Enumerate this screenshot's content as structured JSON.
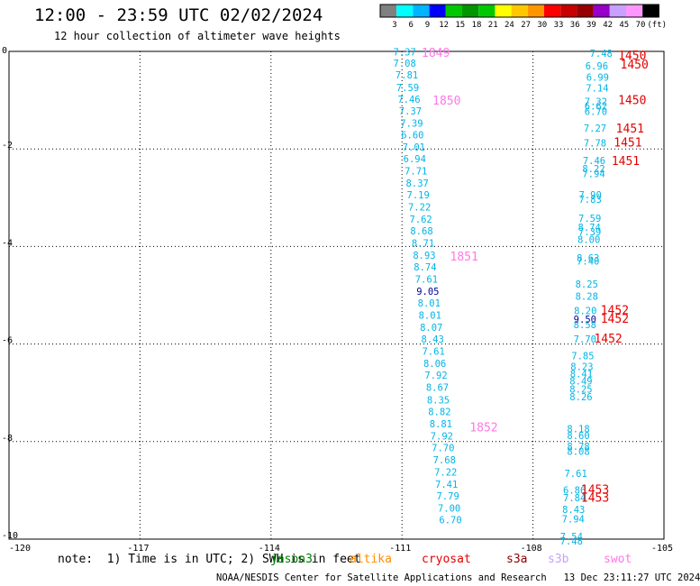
{
  "header": {
    "title": "12:00 - 23:59 UTC 02/02/2024",
    "subtitle": "12 hour collection of altimeter wave heights"
  },
  "colors": {
    "cyan": "#00b4e6",
    "navy": "#000090",
    "red": "#e60000",
    "pink": "#ff78e6",
    "grid": "#000000"
  },
  "color_scale": {
    "labels": [
      "3",
      "6",
      "9",
      "12",
      "15",
      "18",
      "21",
      "24",
      "27",
      "30",
      "33",
      "36",
      "39",
      "42",
      "45",
      "70",
      "(ft)"
    ],
    "swatches": [
      "#808080",
      "#00ffff",
      "#00b4ff",
      "#0000ff",
      "#00c800",
      "#009600",
      "#00c800",
      "#ffff00",
      "#ffc800",
      "#ff9600",
      "#ff0000",
      "#c80000",
      "#960000",
      "#9600c8",
      "#c8a0ff",
      "#ff96ff",
      "#000000"
    ]
  },
  "footer": {
    "note": "note:  1) Time is in UTC; 2) SWH is in feet",
    "missions": [
      {
        "name": "jason3",
        "color": "#008000"
      },
      {
        "name": "altika",
        "color": "#ff8c00"
      },
      {
        "name": "cryosat",
        "color": "#e60000"
      },
      {
        "name": "s3a",
        "color": "#8b0000"
      },
      {
        "name": "s3b",
        "color": "#c8a0ff"
      },
      {
        "name": "swot",
        "color": "#ff78e6"
      }
    ],
    "credit": "NOAA/NESDIS Center for Satellite Applications and Research   13 Dec 23:11:27 UTC 2024"
  },
  "chart_data": {
    "type": "scatter",
    "title": "12:00 - 23:59 UTC 02/02/2024",
    "subtitle": "12 hour collection of altimeter wave heights",
    "xlabel": "",
    "ylabel": "",
    "xlim": [
      -120,
      -105
    ],
    "ylim": [
      -10,
      0
    ],
    "grid": true,
    "x_ticks": [
      "-120",
      "-117",
      "-114",
      "-111",
      "-108",
      "-105"
    ],
    "y_ticks": [
      "0",
      "-2",
      "-4",
      "-6",
      "-8",
      "-10"
    ],
    "x_tick_values": [
      -120,
      -117,
      -114,
      -111,
      -108,
      -105
    ],
    "y_tick_values": [
      0,
      -2,
      -4,
      -6,
      -8,
      -10
    ],
    "track_west": [
      {
        "lon": -111.2,
        "lat": -0.01,
        "v": "7.37",
        "c": "cyan"
      },
      {
        "lon": -111.2,
        "lat": -0.24,
        "v": "7.08",
        "c": "cyan"
      },
      {
        "lon": -111.15,
        "lat": -0.48,
        "v": "7.81",
        "c": "cyan"
      },
      {
        "lon": -111.13,
        "lat": -0.74,
        "v": "7.59",
        "c": "cyan"
      },
      {
        "lon": -111.1,
        "lat": -0.98,
        "v": "7.46",
        "c": "cyan"
      },
      {
        "lon": -111.07,
        "lat": -1.22,
        "v": "7.37",
        "c": "cyan"
      },
      {
        "lon": -111.04,
        "lat": -1.47,
        "v": "7.39",
        "c": "cyan"
      },
      {
        "lon": -111.02,
        "lat": -1.71,
        "v": "6.60",
        "c": "cyan"
      },
      {
        "lon": -110.99,
        "lat": -1.96,
        "v": "7.01",
        "c": "cyan"
      },
      {
        "lon": -110.97,
        "lat": -2.2,
        "v": "6.94",
        "c": "cyan"
      },
      {
        "lon": -110.94,
        "lat": -2.45,
        "v": "7.71",
        "c": "cyan"
      },
      {
        "lon": -110.91,
        "lat": -2.7,
        "v": "8.37",
        "c": "cyan"
      },
      {
        "lon": -110.89,
        "lat": -2.94,
        "v": "7.19",
        "c": "cyan"
      },
      {
        "lon": -110.86,
        "lat": -3.19,
        "v": "7.22",
        "c": "cyan"
      },
      {
        "lon": -110.83,
        "lat": -3.44,
        "v": "7.62",
        "c": "cyan"
      },
      {
        "lon": -110.81,
        "lat": -3.68,
        "v": "8.68",
        "c": "cyan"
      },
      {
        "lon": -110.78,
        "lat": -3.93,
        "v": "8.71",
        "c": "cyan"
      },
      {
        "lon": -110.75,
        "lat": -4.18,
        "v": "8.93",
        "c": "cyan"
      },
      {
        "lon": -110.73,
        "lat": -4.42,
        "v": "8.74",
        "c": "cyan"
      },
      {
        "lon": -110.7,
        "lat": -4.67,
        "v": "7.61",
        "c": "cyan"
      },
      {
        "lon": -110.67,
        "lat": -4.92,
        "v": "9.05",
        "c": "navy"
      },
      {
        "lon": -110.64,
        "lat": -5.16,
        "v": "8.01",
        "c": "cyan"
      },
      {
        "lon": -110.62,
        "lat": -5.41,
        "v": "8.01",
        "c": "cyan"
      },
      {
        "lon": -110.59,
        "lat": -5.66,
        "v": "8.07",
        "c": "cyan"
      },
      {
        "lon": -110.56,
        "lat": -5.9,
        "v": "8.43",
        "c": "cyan"
      },
      {
        "lon": -110.54,
        "lat": -6.15,
        "v": "7.61",
        "c": "cyan"
      },
      {
        "lon": -110.51,
        "lat": -6.4,
        "v": "8.06",
        "c": "cyan"
      },
      {
        "lon": -110.48,
        "lat": -6.64,
        "v": "7.92",
        "c": "cyan"
      },
      {
        "lon": -110.45,
        "lat": -6.89,
        "v": "8.67",
        "c": "cyan"
      },
      {
        "lon": -110.43,
        "lat": -7.14,
        "v": "8.35",
        "c": "cyan"
      },
      {
        "lon": -110.4,
        "lat": -7.38,
        "v": "8.82",
        "c": "cyan"
      },
      {
        "lon": -110.37,
        "lat": -7.63,
        "v": "8.81",
        "c": "cyan"
      },
      {
        "lon": -110.35,
        "lat": -7.88,
        "v": "7.92",
        "c": "cyan"
      },
      {
        "lon": -110.32,
        "lat": -8.12,
        "v": "7.70",
        "c": "cyan"
      },
      {
        "lon": -110.29,
        "lat": -8.37,
        "v": "7.68",
        "c": "cyan"
      },
      {
        "lon": -110.26,
        "lat": -8.62,
        "v": "7.22",
        "c": "cyan"
      },
      {
        "lon": -110.24,
        "lat": -8.87,
        "v": "7.41",
        "c": "cyan"
      },
      {
        "lon": -110.21,
        "lat": -9.11,
        "v": "7.79",
        "c": "cyan"
      },
      {
        "lon": -110.18,
        "lat": -9.36,
        "v": "7.00",
        "c": "cyan"
      },
      {
        "lon": -110.15,
        "lat": -9.6,
        "v": "6.70",
        "c": "cyan"
      }
    ],
    "track_east": [
      {
        "lon": -106.7,
        "lat": -0.04,
        "v": "7.48",
        "c": "cyan"
      },
      {
        "lon": -106.8,
        "lat": -0.3,
        "v": "6.96",
        "c": "cyan"
      },
      {
        "lon": -106.78,
        "lat": -0.53,
        "v": "6.99",
        "c": "cyan"
      },
      {
        "lon": -106.79,
        "lat": -0.75,
        "v": "7.14",
        "c": "cyan"
      },
      {
        "lon": -106.82,
        "lat": -1.03,
        "v": "7.32",
        "c": "cyan"
      },
      {
        "lon": -106.82,
        "lat": -1.12,
        "v": "6.62",
        "c": "cyan"
      },
      {
        "lon": -106.82,
        "lat": -1.23,
        "v": "6.70",
        "c": "cyan"
      },
      {
        "lon": -106.84,
        "lat": -1.57,
        "v": "7.27",
        "c": "cyan"
      },
      {
        "lon": -106.84,
        "lat": -1.88,
        "v": "7.78",
        "c": "cyan"
      },
      {
        "lon": -106.86,
        "lat": -2.24,
        "v": "7.46",
        "c": "cyan"
      },
      {
        "lon": -106.87,
        "lat": -2.4,
        "v": "8.22",
        "c": "cyan"
      },
      {
        "lon": -106.87,
        "lat": -2.5,
        "v": "7.94",
        "c": "cyan"
      },
      {
        "lon": -106.95,
        "lat": -2.94,
        "v": "7.90",
        "c": "cyan"
      },
      {
        "lon": -106.95,
        "lat": -3.03,
        "v": "7.83",
        "c": "cyan"
      },
      {
        "lon": -106.96,
        "lat": -3.42,
        "v": "7.59",
        "c": "cyan"
      },
      {
        "lon": -106.97,
        "lat": -3.6,
        "v": "8.74",
        "c": "cyan"
      },
      {
        "lon": -106.96,
        "lat": -3.7,
        "v": "7.39",
        "c": "cyan"
      },
      {
        "lon": -106.98,
        "lat": -3.85,
        "v": "8.00",
        "c": "cyan"
      },
      {
        "lon": -107.0,
        "lat": -4.23,
        "v": "8.63",
        "c": "cyan"
      },
      {
        "lon": -107.0,
        "lat": -4.3,
        "v": "7.40",
        "c": "cyan"
      },
      {
        "lon": -107.03,
        "lat": -4.77,
        "v": "8.25",
        "c": "cyan"
      },
      {
        "lon": -107.03,
        "lat": -5.02,
        "v": "8.28",
        "c": "cyan"
      },
      {
        "lon": -107.06,
        "lat": -5.31,
        "v": "8.20",
        "c": "cyan"
      },
      {
        "lon": -107.07,
        "lat": -5.49,
        "v": "9.50",
        "c": "navy"
      },
      {
        "lon": -107.07,
        "lat": -5.6,
        "v": "8.58",
        "c": "cyan"
      },
      {
        "lon": -107.07,
        "lat": -5.9,
        "v": "7.70",
        "c": "cyan"
      },
      {
        "lon": -107.12,
        "lat": -6.24,
        "v": "7.85",
        "c": "cyan"
      },
      {
        "lon": -107.14,
        "lat": -6.46,
        "v": "8.23",
        "c": "cyan"
      },
      {
        "lon": -107.15,
        "lat": -6.61,
        "v": "8.41",
        "c": "cyan"
      },
      {
        "lon": -107.16,
        "lat": -6.76,
        "v": "8.49",
        "c": "cyan"
      },
      {
        "lon": -107.16,
        "lat": -6.92,
        "v": "8.25",
        "c": "cyan"
      },
      {
        "lon": -107.16,
        "lat": -7.08,
        "v": "8.26",
        "c": "cyan"
      },
      {
        "lon": -107.22,
        "lat": -7.74,
        "v": "8.18",
        "c": "cyan"
      },
      {
        "lon": -107.22,
        "lat": -7.87,
        "v": "8.60",
        "c": "cyan"
      },
      {
        "lon": -107.22,
        "lat": -8.1,
        "v": "8.78",
        "c": "cyan"
      },
      {
        "lon": -107.22,
        "lat": -8.2,
        "v": "8.08",
        "c": "cyan"
      },
      {
        "lon": -107.28,
        "lat": -8.65,
        "v": "7.61",
        "c": "cyan"
      },
      {
        "lon": -107.31,
        "lat": -8.99,
        "v": "6.86",
        "c": "cyan"
      },
      {
        "lon": -107.31,
        "lat": -9.15,
        "v": "7.84",
        "c": "cyan"
      },
      {
        "lon": -107.33,
        "lat": -9.39,
        "v": "8.43",
        "c": "cyan"
      },
      {
        "lon": -107.34,
        "lat": -9.58,
        "v": "7.94",
        "c": "cyan"
      },
      {
        "lon": -107.38,
        "lat": -9.94,
        "v": "7.54",
        "c": "cyan"
      },
      {
        "lon": -107.38,
        "lat": -10.04,
        "v": "7.48",
        "c": "cyan"
      }
    ],
    "pass_labels": [
      {
        "lon": -110.55,
        "lat": -0.02,
        "t": "1849",
        "c": "pink"
      },
      {
        "lon": -110.3,
        "lat": -1.0,
        "t": "1850",
        "c": "pink"
      },
      {
        "lon": -109.9,
        "lat": -4.2,
        "t": "1851",
        "c": "pink"
      },
      {
        "lon": -109.45,
        "lat": -7.7,
        "t": "1852",
        "c": "pink"
      },
      {
        "lon": -106.05,
        "lat": -0.07,
        "t": "1450",
        "c": "red"
      },
      {
        "lon": -106.0,
        "lat": -0.26,
        "t": "1450",
        "c": "red"
      },
      {
        "lon": -106.05,
        "lat": -0.99,
        "t": "1450",
        "c": "red"
      },
      {
        "lon": -106.1,
        "lat": -1.57,
        "t": "1451",
        "c": "red"
      },
      {
        "lon": -106.15,
        "lat": -1.86,
        "t": "1451",
        "c": "red"
      },
      {
        "lon": -106.2,
        "lat": -2.24,
        "t": "1451",
        "c": "red"
      },
      {
        "lon": -106.45,
        "lat": -5.3,
        "t": "1452",
        "c": "red"
      },
      {
        "lon": -106.45,
        "lat": -5.47,
        "t": "1452",
        "c": "red"
      },
      {
        "lon": -106.6,
        "lat": -5.88,
        "t": "1452",
        "c": "red"
      },
      {
        "lon": -106.9,
        "lat": -8.97,
        "t": "1453",
        "c": "red"
      },
      {
        "lon": -106.9,
        "lat": -9.14,
        "t": "1453",
        "c": "red"
      }
    ]
  }
}
